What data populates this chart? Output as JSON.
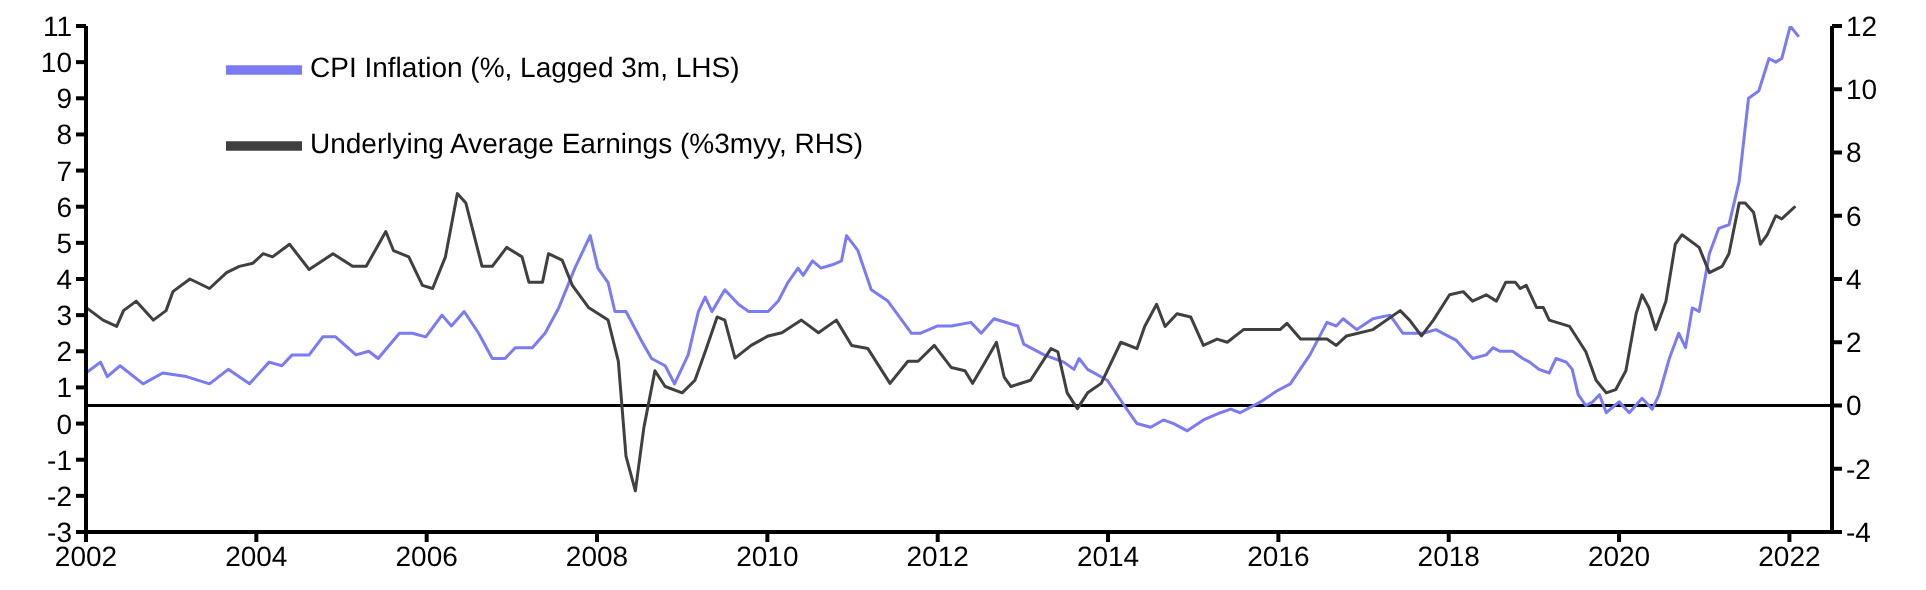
{
  "chart_data": {
    "type": "line",
    "xlim": [
      2002,
      2022.5
    ],
    "xticks": [
      2002,
      2004,
      2006,
      2008,
      2010,
      2012,
      2014,
      2016,
      2018,
      2020,
      2022
    ],
    "ylim": [
      -3,
      11
    ],
    "yticks": [
      -3,
      -2,
      -1,
      0,
      1,
      2,
      3,
      4,
      5,
      6,
      7,
      8,
      9,
      10,
      11
    ],
    "y2lim": [
      -4,
      12
    ],
    "y2ticks": [
      -4,
      -2,
      0,
      2,
      4,
      6,
      8,
      10,
      12
    ],
    "grid": false,
    "legend": "top left",
    "marker": "none",
    "line_style": "solid",
    "ref_lines": [
      {
        "axis": "y2",
        "value": 0,
        "color": "#000000"
      }
    ],
    "series": [
      {
        "name": "CPI Inflation (%, Lagged 3m, LHS)",
        "color": "#7b7bf5",
        "x": [
          2002.0,
          2002.17,
          2002.25,
          2002.4,
          2002.67,
          2002.9,
          2003.18,
          2003.45,
          2003.67,
          2003.92,
          2004.15,
          2004.3,
          2004.42,
          2004.62,
          2004.78,
          2004.93,
          2005.17,
          2005.32,
          2005.43,
          2005.68,
          2005.83,
          2005.99,
          2006.18,
          2006.29,
          2006.44,
          2006.61,
          2006.77,
          2006.92,
          2007.04,
          2007.24,
          2007.39,
          2007.55,
          2007.74,
          2007.92,
          2008.01,
          2008.13,
          2008.21,
          2008.34,
          2008.52,
          2008.64,
          2008.8,
          2008.91,
          2009.07,
          2009.19,
          2009.27,
          2009.35,
          2009.5,
          2009.66,
          2009.78,
          2010.01,
          2010.13,
          2010.24,
          2010.36,
          2010.42,
          2010.53,
          2010.63,
          2010.77,
          2010.87,
          2010.93,
          2011.06,
          2011.22,
          2011.41,
          2011.69,
          2011.8,
          2012.0,
          2012.16,
          2012.39,
          2012.51,
          2012.66,
          2012.94,
          2013.01,
          2013.25,
          2013.48,
          2013.6,
          2013.66,
          2013.76,
          2013.99,
          2014.19,
          2014.34,
          2014.5,
          2014.65,
          2014.77,
          2014.93,
          2015.12,
          2015.32,
          2015.44,
          2015.55,
          2015.79,
          2015.98,
          2016.14,
          2016.37,
          2016.57,
          2016.68,
          2016.76,
          2016.92,
          2017.11,
          2017.31,
          2017.46,
          2017.7,
          2017.85,
          2018.01,
          2018.09,
          2018.28,
          2018.44,
          2018.52,
          2018.6,
          2018.75,
          2018.87,
          2018.95,
          2019.06,
          2019.18,
          2019.26,
          2019.38,
          2019.45,
          2019.52,
          2019.61,
          2019.69,
          2019.77,
          2019.85,
          2020.0,
          2020.12,
          2020.27,
          2020.39,
          2020.47,
          2020.59,
          2020.7,
          2020.78,
          2020.86,
          2020.94,
          2021.06,
          2021.17,
          2021.29,
          2021.41,
          2021.52,
          2021.64,
          2021.76,
          2021.84,
          2021.91,
          2022.01,
          2022.11
        ],
        "values": [
          1.4,
          1.7,
          1.3,
          1.6,
          1.1,
          1.4,
          1.3,
          1.1,
          1.5,
          1.1,
          1.7,
          1.6,
          1.9,
          1.9,
          2.4,
          2.4,
          1.9,
          2.0,
          1.8,
          2.5,
          2.5,
          2.4,
          3.0,
          2.7,
          3.1,
          2.5,
          1.8,
          1.8,
          2.1,
          2.1,
          2.5,
          3.2,
          4.3,
          5.2,
          4.3,
          3.9,
          3.1,
          3.1,
          2.3,
          1.8,
          1.6,
          1.1,
          1.9,
          3.1,
          3.5,
          3.1,
          3.7,
          3.3,
          3.1,
          3.1,
          3.4,
          3.9,
          4.3,
          4.1,
          4.5,
          4.3,
          4.4,
          4.5,
          5.2,
          4.8,
          3.7,
          3.4,
          2.5,
          2.5,
          2.7,
          2.7,
          2.8,
          2.5,
          2.9,
          2.7,
          2.2,
          1.9,
          1.7,
          1.5,
          1.8,
          1.5,
          1.2,
          0.5,
          0.0,
          -0.1,
          0.1,
          0.0,
          -0.2,
          0.1,
          0.3,
          0.4,
          0.3,
          0.6,
          0.9,
          1.1,
          1.9,
          2.8,
          2.7,
          2.9,
          2.6,
          2.9,
          3.0,
          2.5,
          2.5,
          2.6,
          2.4,
          2.3,
          1.8,
          1.9,
          2.1,
          2.0,
          2.0,
          1.8,
          1.7,
          1.5,
          1.4,
          1.8,
          1.7,
          1.5,
          0.8,
          0.5,
          0.6,
          0.8,
          0.3,
          0.6,
          0.3,
          0.7,
          0.4,
          0.8,
          1.8,
          2.5,
          2.1,
          3.2,
          3.1,
          4.7,
          5.4,
          5.5,
          6.7,
          9.0,
          9.2,
          10.1,
          10.0,
          10.1,
          11.0,
          10.7
        ]
      },
      {
        "name": "Underlying Average Earnings (%3myy, RHS)",
        "color": "#404040",
        "axis": "y2",
        "x": [
          2002.0,
          2002.2,
          2002.36,
          2002.44,
          2002.59,
          2002.79,
          2002.94,
          2003.02,
          2003.22,
          2003.45,
          2003.65,
          2003.8,
          2003.96,
          2004.08,
          2004.19,
          2004.39,
          2004.62,
          2004.9,
          2005.13,
          2005.29,
          2005.52,
          2005.61,
          2005.79,
          2005.95,
          2006.07,
          2006.22,
          2006.36,
          2006.46,
          2006.65,
          2006.77,
          2006.94,
          2007.12,
          2007.2,
          2007.36,
          2007.43,
          2007.59,
          2007.71,
          2007.9,
          2008.13,
          2008.25,
          2008.34,
          2008.45,
          2008.55,
          2008.68,
          2008.8,
          2009.0,
          2009.15,
          2009.27,
          2009.41,
          2009.5,
          2009.62,
          2009.81,
          2010.01,
          2010.17,
          2010.4,
          2010.6,
          2010.81,
          2010.99,
          2011.18,
          2011.44,
          2011.65,
          2011.77,
          2011.96,
          2012.16,
          2012.32,
          2012.41,
          2012.54,
          2012.69,
          2012.78,
          2012.86,
          2013.09,
          2013.33,
          2013.41,
          2013.52,
          2013.64,
          2013.76,
          2013.92,
          2014.15,
          2014.34,
          2014.43,
          2014.57,
          2014.67,
          2014.81,
          2014.97,
          2015.12,
          2015.28,
          2015.4,
          2015.59,
          2016.02,
          2016.1,
          2016.26,
          2016.57,
          2016.68,
          2016.8,
          2017.11,
          2017.43,
          2017.54,
          2017.68,
          2017.82,
          2018.01,
          2018.17,
          2018.28,
          2018.44,
          2018.56,
          2018.67,
          2018.78,
          2018.84,
          2018.91,
          2019.03,
          2019.11,
          2019.18,
          2019.42,
          2019.61,
          2019.73,
          2019.85,
          2019.96,
          2020.08,
          2020.2,
          2020.27,
          2020.35,
          2020.43,
          2020.55,
          2020.66,
          2020.74,
          2020.94,
          2021.06,
          2021.21,
          2021.29,
          2021.41,
          2021.48,
          2021.58,
          2021.66,
          2021.74,
          2021.84,
          2021.91,
          2022.07
        ],
        "values": [
          3.1,
          2.7,
          2.5,
          3.0,
          3.3,
          2.7,
          3.0,
          3.6,
          4.0,
          3.7,
          4.2,
          4.4,
          4.5,
          4.8,
          4.7,
          5.1,
          4.3,
          4.8,
          4.4,
          4.4,
          5.5,
          4.9,
          4.7,
          3.8,
          3.7,
          4.7,
          6.7,
          6.4,
          4.4,
          4.4,
          5.0,
          4.7,
          3.9,
          3.9,
          4.8,
          4.6,
          3.8,
          3.1,
          2.7,
          1.4,
          -1.6,
          -2.7,
          -0.7,
          1.1,
          0.6,
          0.4,
          0.8,
          1.7,
          2.8,
          2.7,
          1.5,
          1.9,
          2.2,
          2.3,
          2.7,
          2.3,
          2.7,
          1.9,
          1.8,
          0.7,
          1.4,
          1.4,
          1.9,
          1.2,
          1.1,
          0.7,
          1.3,
          2.0,
          0.9,
          0.6,
          0.8,
          1.8,
          1.7,
          0.4,
          -0.1,
          0.4,
          0.7,
          2.0,
          1.8,
          2.5,
          3.2,
          2.5,
          2.9,
          2.8,
          1.9,
          2.1,
          2.0,
          2.4,
          2.4,
          2.6,
          2.1,
          2.1,
          1.9,
          2.2,
          2.4,
          3.0,
          2.7,
          2.2,
          2.7,
          3.5,
          3.6,
          3.3,
          3.5,
          3.3,
          3.9,
          3.9,
          3.7,
          3.8,
          3.1,
          3.1,
          2.7,
          2.5,
          1.7,
          0.8,
          0.4,
          0.5,
          1.1,
          2.9,
          3.5,
          3.1,
          2.4,
          3.3,
          5.1,
          5.4,
          5.0,
          4.2,
          4.4,
          4.8,
          6.4,
          6.4,
          6.1,
          5.1,
          5.4,
          6.0,
          5.9,
          6.3
        ]
      }
    ]
  }
}
